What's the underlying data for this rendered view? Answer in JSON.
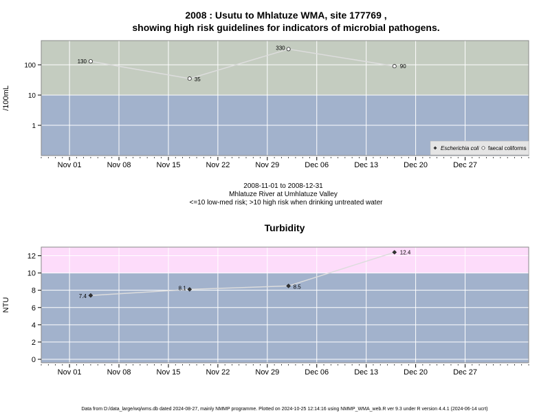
{
  "figure": {
    "title_line1": "2008 : Usutu to Mhlatuze WMA, site 177769 ,",
    "title_line2": "showing high risk guidelines for indicators of microbial pathogens.",
    "caption_line1": "2008-11-01 to 2008-12-31",
    "caption_line2": "Mhlatuze River at Umhlatuze Valley",
    "caption_line3": "<=10 low-med risk; >10 high risk when drinking untreated water",
    "footer": "Data from D:/data_large/wq/wms.db dated 2024-08-27, mainly NMMP programme. Plotted on 2024-10-25 12:14:16 using NMMP_WMA_web.R ver 9.3 under R version 4.4.1 (2024-06-14 ucrt)"
  },
  "colors": {
    "high_risk_top": "#c4ccc0",
    "low_risk": "#a2b2cc",
    "high_risk_turbidity": "#fddcfa",
    "grid": "#ffffff",
    "series_line": "#dddddd",
    "panel_border": "#888888"
  },
  "chart_data": [
    {
      "type": "scatter",
      "title": "",
      "xlabel": "",
      "ylabel": "/100mL",
      "x_axis": "date",
      "xlim": [
        "2008-10-28",
        "2009-01-05"
      ],
      "x_ticks": [
        "2008-11-01",
        "2008-11-08",
        "2008-11-15",
        "2008-11-22",
        "2008-11-29",
        "2008-12-06",
        "2008-12-13",
        "2008-12-20",
        "2008-12-27"
      ],
      "x_tick_labels": [
        "Nov 01",
        "Nov 08",
        "Nov 15",
        "Nov 22",
        "Nov 29",
        "Dec 06",
        "Dec 13",
        "Dec 20",
        "Dec 27"
      ],
      "y_scale": "log",
      "ylim": [
        0.1,
        630
      ],
      "y_ticks": [
        1,
        10,
        100
      ],
      "y_tick_labels": [
        "1",
        "10",
        "100"
      ],
      "grid": true,
      "threshold": 10,
      "legend_position": "bottom-right",
      "series": [
        {
          "name": "faecal coliforms",
          "marker": "open-circle",
          "points": [
            {
              "x": "2008-11-04",
              "y": 130,
              "label": "130"
            },
            {
              "x": "2008-11-18",
              "y": 35,
              "label": "35"
            },
            {
              "x": "2008-12-02",
              "y": 330,
              "label": "330"
            },
            {
              "x": "2008-12-17",
              "y": 90,
              "label": "90"
            }
          ]
        },
        {
          "name": "Escherichia coli",
          "marker": "filled-diamond",
          "points": []
        }
      ]
    },
    {
      "type": "scatter",
      "title": "Turbidity",
      "xlabel": "",
      "ylabel": "NTU",
      "x_axis": "date",
      "xlim": [
        "2008-10-28",
        "2009-01-05"
      ],
      "x_ticks": [
        "2008-11-01",
        "2008-11-08",
        "2008-11-15",
        "2008-11-22",
        "2008-11-29",
        "2008-12-06",
        "2008-12-13",
        "2008-12-20",
        "2008-12-27"
      ],
      "x_tick_labels": [
        "Nov 01",
        "Nov 08",
        "Nov 15",
        "Nov 22",
        "Nov 29",
        "Dec 06",
        "Dec 13",
        "Dec 20",
        "Dec 27"
      ],
      "y_scale": "linear",
      "ylim": [
        -0.4,
        13
      ],
      "y_ticks": [
        0,
        2,
        4,
        6,
        8,
        10,
        12
      ],
      "y_tick_labels": [
        "0",
        "2",
        "4",
        "6",
        "8",
        "10",
        "12"
      ],
      "grid": true,
      "threshold": 10,
      "series": [
        {
          "name": "",
          "marker": "filled-diamond",
          "points": [
            {
              "x": "2008-11-04",
              "y": 7.4,
              "label": "7.4"
            },
            {
              "x": "2008-11-18",
              "y": 8.1,
              "label": "8.1"
            },
            {
              "x": "2008-12-02",
              "y": 8.5,
              "label": "8.5"
            },
            {
              "x": "2008-12-17",
              "y": 12.4,
              "label": "12.4"
            }
          ]
        }
      ]
    }
  ]
}
